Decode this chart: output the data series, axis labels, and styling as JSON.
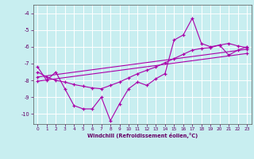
{
  "xlabel": "Windchill (Refroidissement éolien,°C)",
  "background_color": "#c8eef0",
  "grid_color": "#ffffff",
  "line_color": "#aa00aa",
  "xlim": [
    -0.5,
    23.5
  ],
  "ylim": [
    -10.6,
    -3.5
  ],
  "yticks": [
    -10,
    -9,
    -8,
    -7,
    -6,
    -5,
    -4
  ],
  "xticks": [
    0,
    1,
    2,
    3,
    4,
    5,
    6,
    7,
    8,
    9,
    10,
    11,
    12,
    13,
    14,
    15,
    16,
    17,
    18,
    19,
    20,
    21,
    22,
    23
  ],
  "line1_x": [
    0,
    1,
    2,
    3,
    4,
    5,
    6,
    7,
    8,
    9,
    10,
    11,
    12,
    13,
    14,
    15,
    16,
    17,
    18,
    19,
    20,
    21,
    22,
    23
  ],
  "line1_y": [
    -7.2,
    -8.0,
    -7.5,
    -8.5,
    -9.5,
    -9.7,
    -9.7,
    -9.0,
    -10.4,
    -9.4,
    -8.5,
    -8.1,
    -8.3,
    -7.9,
    -7.6,
    -5.6,
    -5.3,
    -4.3,
    -5.8,
    -6.0,
    -5.9,
    -6.5,
    -6.2,
    -6.0
  ],
  "line2_x": [
    0,
    1,
    2,
    3,
    4,
    5,
    6,
    7,
    8,
    9,
    10,
    11,
    12,
    13,
    14,
    15,
    16,
    17,
    18,
    19,
    20,
    21,
    22,
    23
  ],
  "line2_y": [
    -7.5,
    -7.8,
    -8.0,
    -8.1,
    -8.25,
    -8.35,
    -8.45,
    -8.5,
    -8.3,
    -8.1,
    -7.85,
    -7.6,
    -7.4,
    -7.2,
    -6.95,
    -6.7,
    -6.45,
    -6.2,
    -6.1,
    -6.05,
    -5.9,
    -5.8,
    -5.95,
    -6.05
  ],
  "line3_x": [
    0,
    23
  ],
  "line3_y": [
    -7.8,
    -6.15
  ],
  "line4_x": [
    0,
    23
  ],
  "line4_y": [
    -8.05,
    -6.4
  ]
}
